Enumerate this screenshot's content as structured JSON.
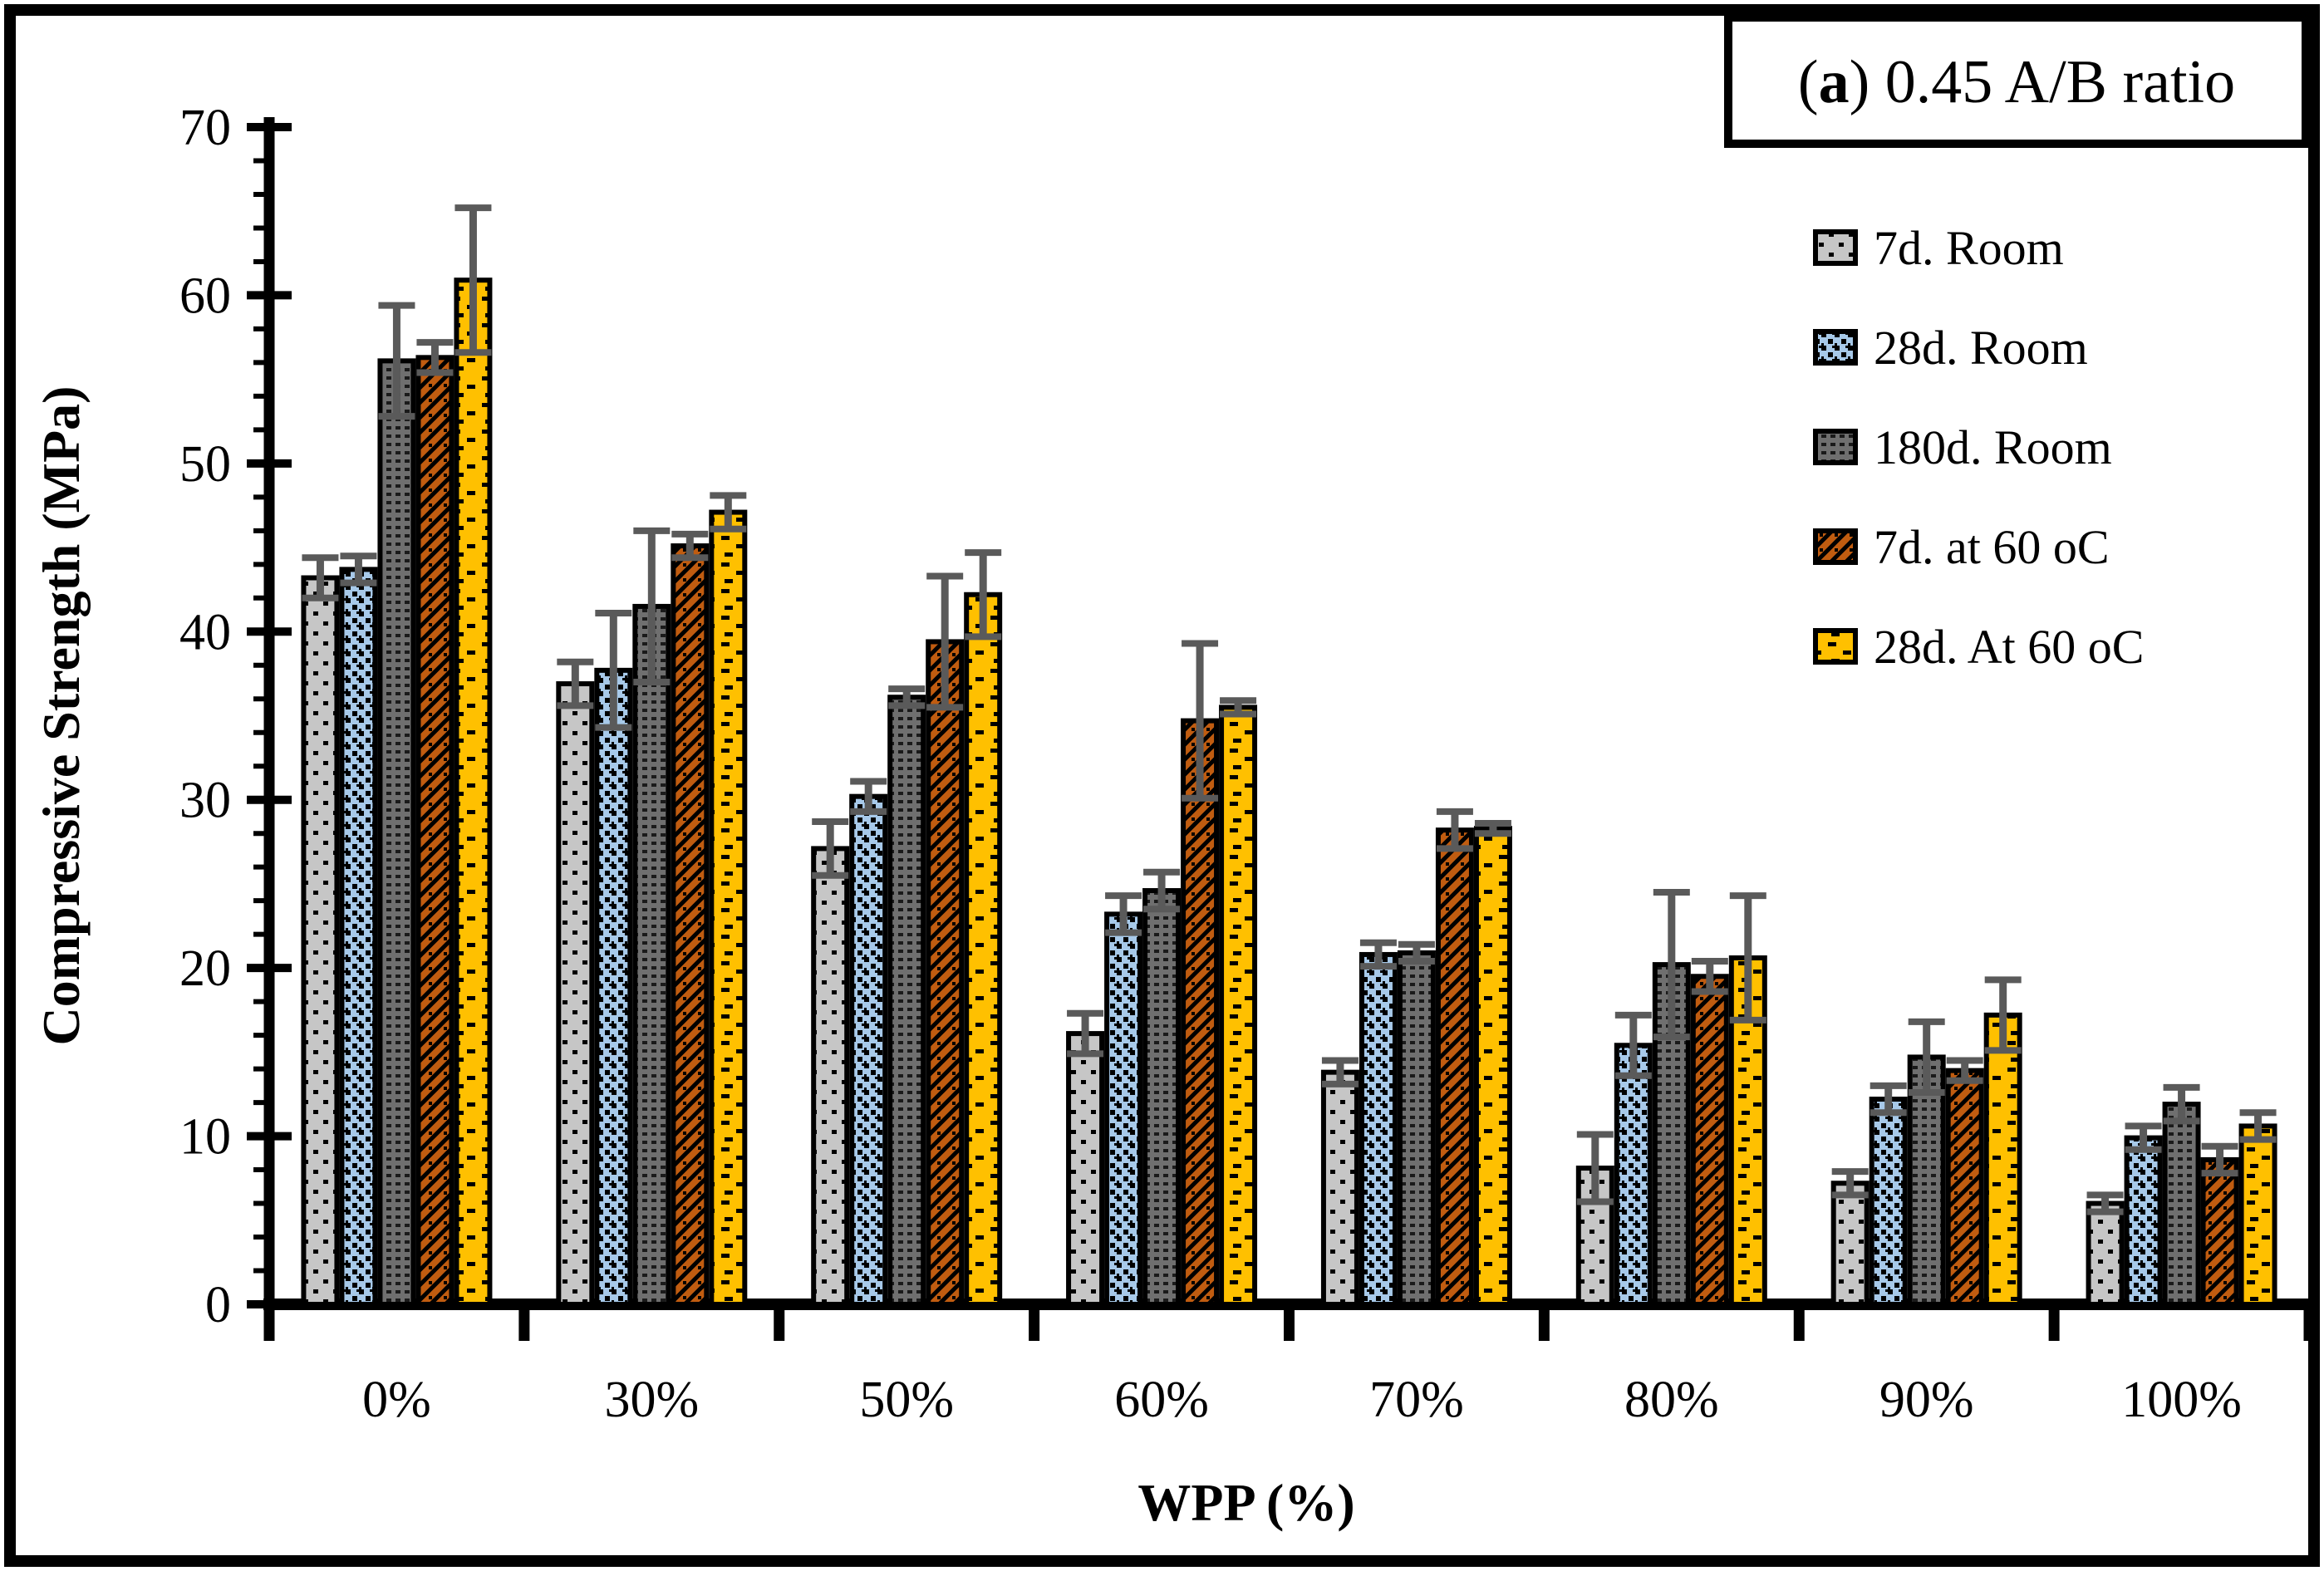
{
  "figure": {
    "panel_label_prefix": "(",
    "panel_label_bold": "a",
    "panel_label_suffix": ") ",
    "panel_title": "0.45 A/B ratio",
    "full_title": "(a) 0.45 A/B ratio"
  },
  "chart_data": {
    "type": "bar",
    "title": "(a) 0.45 A/B ratio",
    "xlabel": "WPP (%)",
    "ylabel": "Compressive Strength (MPa)",
    "ylim": [
      0,
      70
    ],
    "y_major_tick": 10,
    "y_minor_tick": 2,
    "y_tick_labels": [
      "0",
      "10",
      "20",
      "30",
      "40",
      "50",
      "60",
      "70"
    ],
    "grid": false,
    "legend_position": "top-right",
    "error_bar_color": "#5a5a5a",
    "categories": [
      "0%",
      "30%",
      "50%",
      "60%",
      "70%",
      "80%",
      "90%",
      "100%"
    ],
    "series": [
      {
        "name": "7d. Room",
        "color": "#c6c6c6",
        "pattern": "sparse-dots",
        "values": [
          43.2,
          36.9,
          27.1,
          16.1,
          13.8,
          8.1,
          7.2,
          6.0
        ],
        "errors": [
          1.2,
          1.3,
          1.6,
          1.2,
          0.7,
          2.0,
          0.7,
          0.5
        ]
      },
      {
        "name": "28d. Room",
        "color": "#a7c9e9",
        "pattern": "diamond-lattice",
        "values": [
          43.7,
          37.7,
          30.2,
          23.2,
          20.8,
          15.4,
          12.2,
          9.9
        ],
        "errors": [
          0.8,
          3.4,
          0.9,
          1.1,
          0.7,
          1.8,
          0.8,
          0.7
        ]
      },
      {
        "name": "180d. Room",
        "color": "#6f6f6f",
        "pattern": "dense-grid",
        "values": [
          56.1,
          41.5,
          36.1,
          24.6,
          20.9,
          20.2,
          14.7,
          11.9
        ],
        "errors": [
          3.3,
          4.5,
          0.5,
          1.1,
          0.5,
          4.3,
          2.1,
          1.0
        ]
      },
      {
        "name": "7d. at 60 oC",
        "color": "#c05c10",
        "pattern": "diagonal-stripes",
        "values": [
          56.3,
          45.1,
          39.4,
          34.7,
          28.2,
          19.5,
          13.9,
          8.6
        ],
        "errors": [
          0.9,
          0.7,
          3.9,
          4.6,
          1.1,
          0.9,
          0.6,
          0.8
        ]
      },
      {
        "name": "28d. At 60 oC",
        "color": "#ffc000",
        "pattern": "dash-scatter",
        "values": [
          60.9,
          47.1,
          42.2,
          35.5,
          28.3,
          20.6,
          17.2,
          10.6
        ],
        "errors": [
          4.3,
          1.0,
          2.5,
          0.4,
          0.3,
          3.7,
          2.1,
          0.8
        ]
      }
    ]
  }
}
